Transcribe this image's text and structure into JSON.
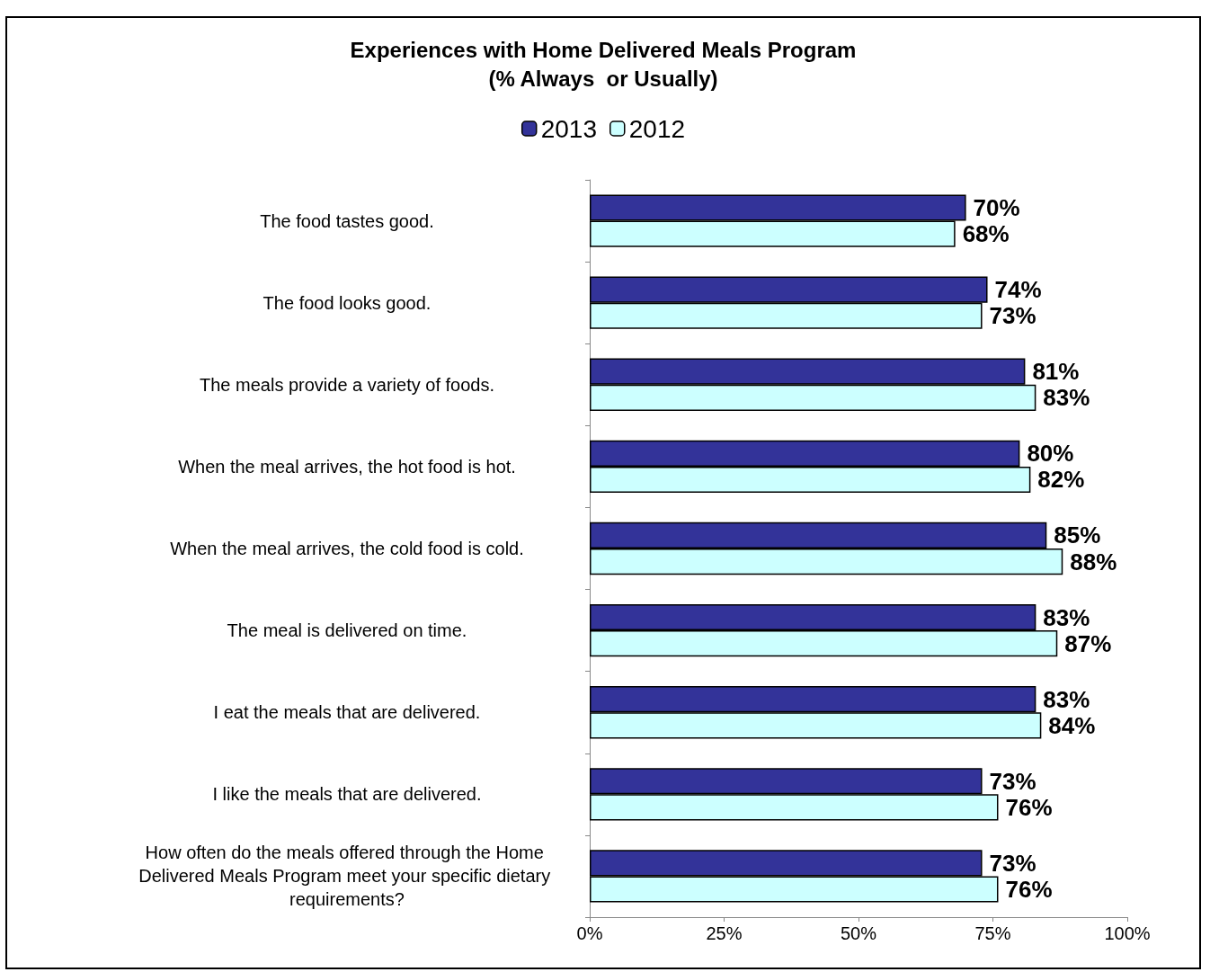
{
  "chart_data": {
    "type": "bar",
    "orientation": "horizontal",
    "title": "Experiences with Home Delivered Meals Program\n(% Always  or Usually)",
    "categories": [
      "The food tastes good.",
      "The food looks good.",
      "The meals provide a variety of foods.",
      "When the meal arrives, the hot food is hot.",
      "When the meal arrives, the cold food is cold.",
      "The meal is delivered on time.",
      "I eat the meals that are delivered.",
      "I like the meals that are delivered.",
      "How often do the meals offered through the Home Delivered Meals Program meet your specific dietary requirements?"
    ],
    "series": [
      {
        "name": "2013",
        "color": "#333399",
        "values": [
          70,
          74,
          81,
          80,
          85,
          83,
          83,
          73,
          73
        ],
        "value_labels": [
          "70%",
          "74%",
          "81%",
          "80%",
          "85%",
          "83%",
          "83%",
          "73%",
          "73%"
        ]
      },
      {
        "name": "2012",
        "color": "#ccffff",
        "values": [
          68,
          73,
          83,
          82,
          88,
          87,
          84,
          76,
          76
        ],
        "value_labels": [
          "68%",
          "73%",
          "83%",
          "82%",
          "88%",
          "87%",
          "84%",
          "76%",
          "76%"
        ]
      }
    ],
    "xlim": [
      0,
      100
    ],
    "xticks": [
      {
        "value": 0,
        "label": "0%"
      },
      {
        "value": 25,
        "label": "25%"
      },
      {
        "value": 50,
        "label": "50%"
      },
      {
        "value": 75,
        "label": "75%"
      },
      {
        "value": 100,
        "label": "100%"
      }
    ],
    "grid": false,
    "legend": "top"
  }
}
